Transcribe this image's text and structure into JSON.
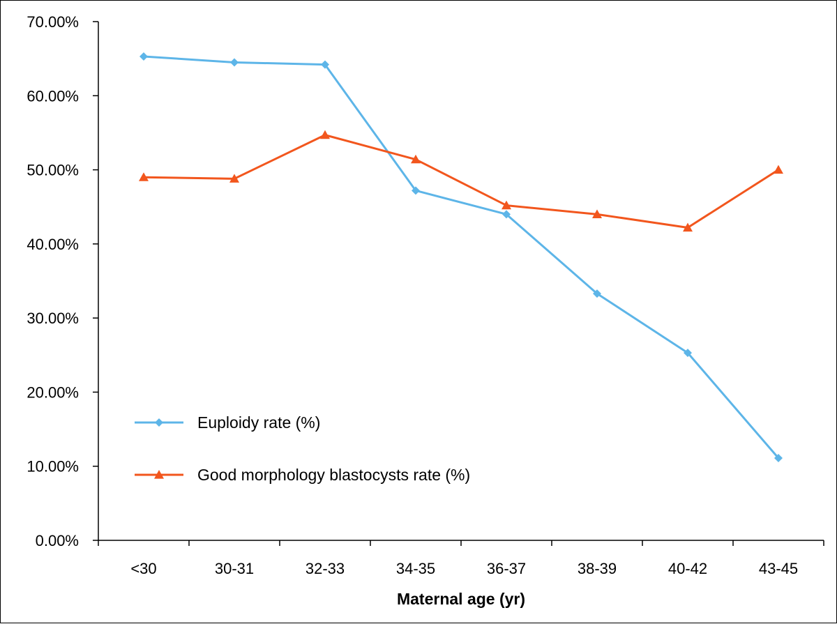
{
  "chart_data": {
    "type": "line",
    "title": "",
    "xlabel": "Maternal age (yr)",
    "ylabel": "",
    "ylim": [
      0,
      70
    ],
    "y_tick_labels": [
      "0.00%",
      "10.00%",
      "20.00%",
      "30.00%",
      "40.00%",
      "50.00%",
      "60.00%",
      "70.00%"
    ],
    "categories": [
      "<30",
      "30-31",
      "32-33",
      "34-35",
      "36-37",
      "38-39",
      "40-42",
      "43-45"
    ],
    "grid": false,
    "legend_position": "bottom-left",
    "series": [
      {
        "name": "Euploidy rate (%)",
        "color": "#5DB5E8",
        "marker": "diamond",
        "values": [
          65.3,
          64.5,
          64.2,
          47.2,
          44.0,
          33.3,
          25.3,
          11.1
        ]
      },
      {
        "name": "Good morphology blastocysts rate (%)",
        "color": "#F2561D",
        "marker": "triangle",
        "values": [
          49.0,
          48.8,
          54.7,
          51.4,
          45.2,
          44.0,
          42.2,
          50.0
        ]
      }
    ]
  }
}
